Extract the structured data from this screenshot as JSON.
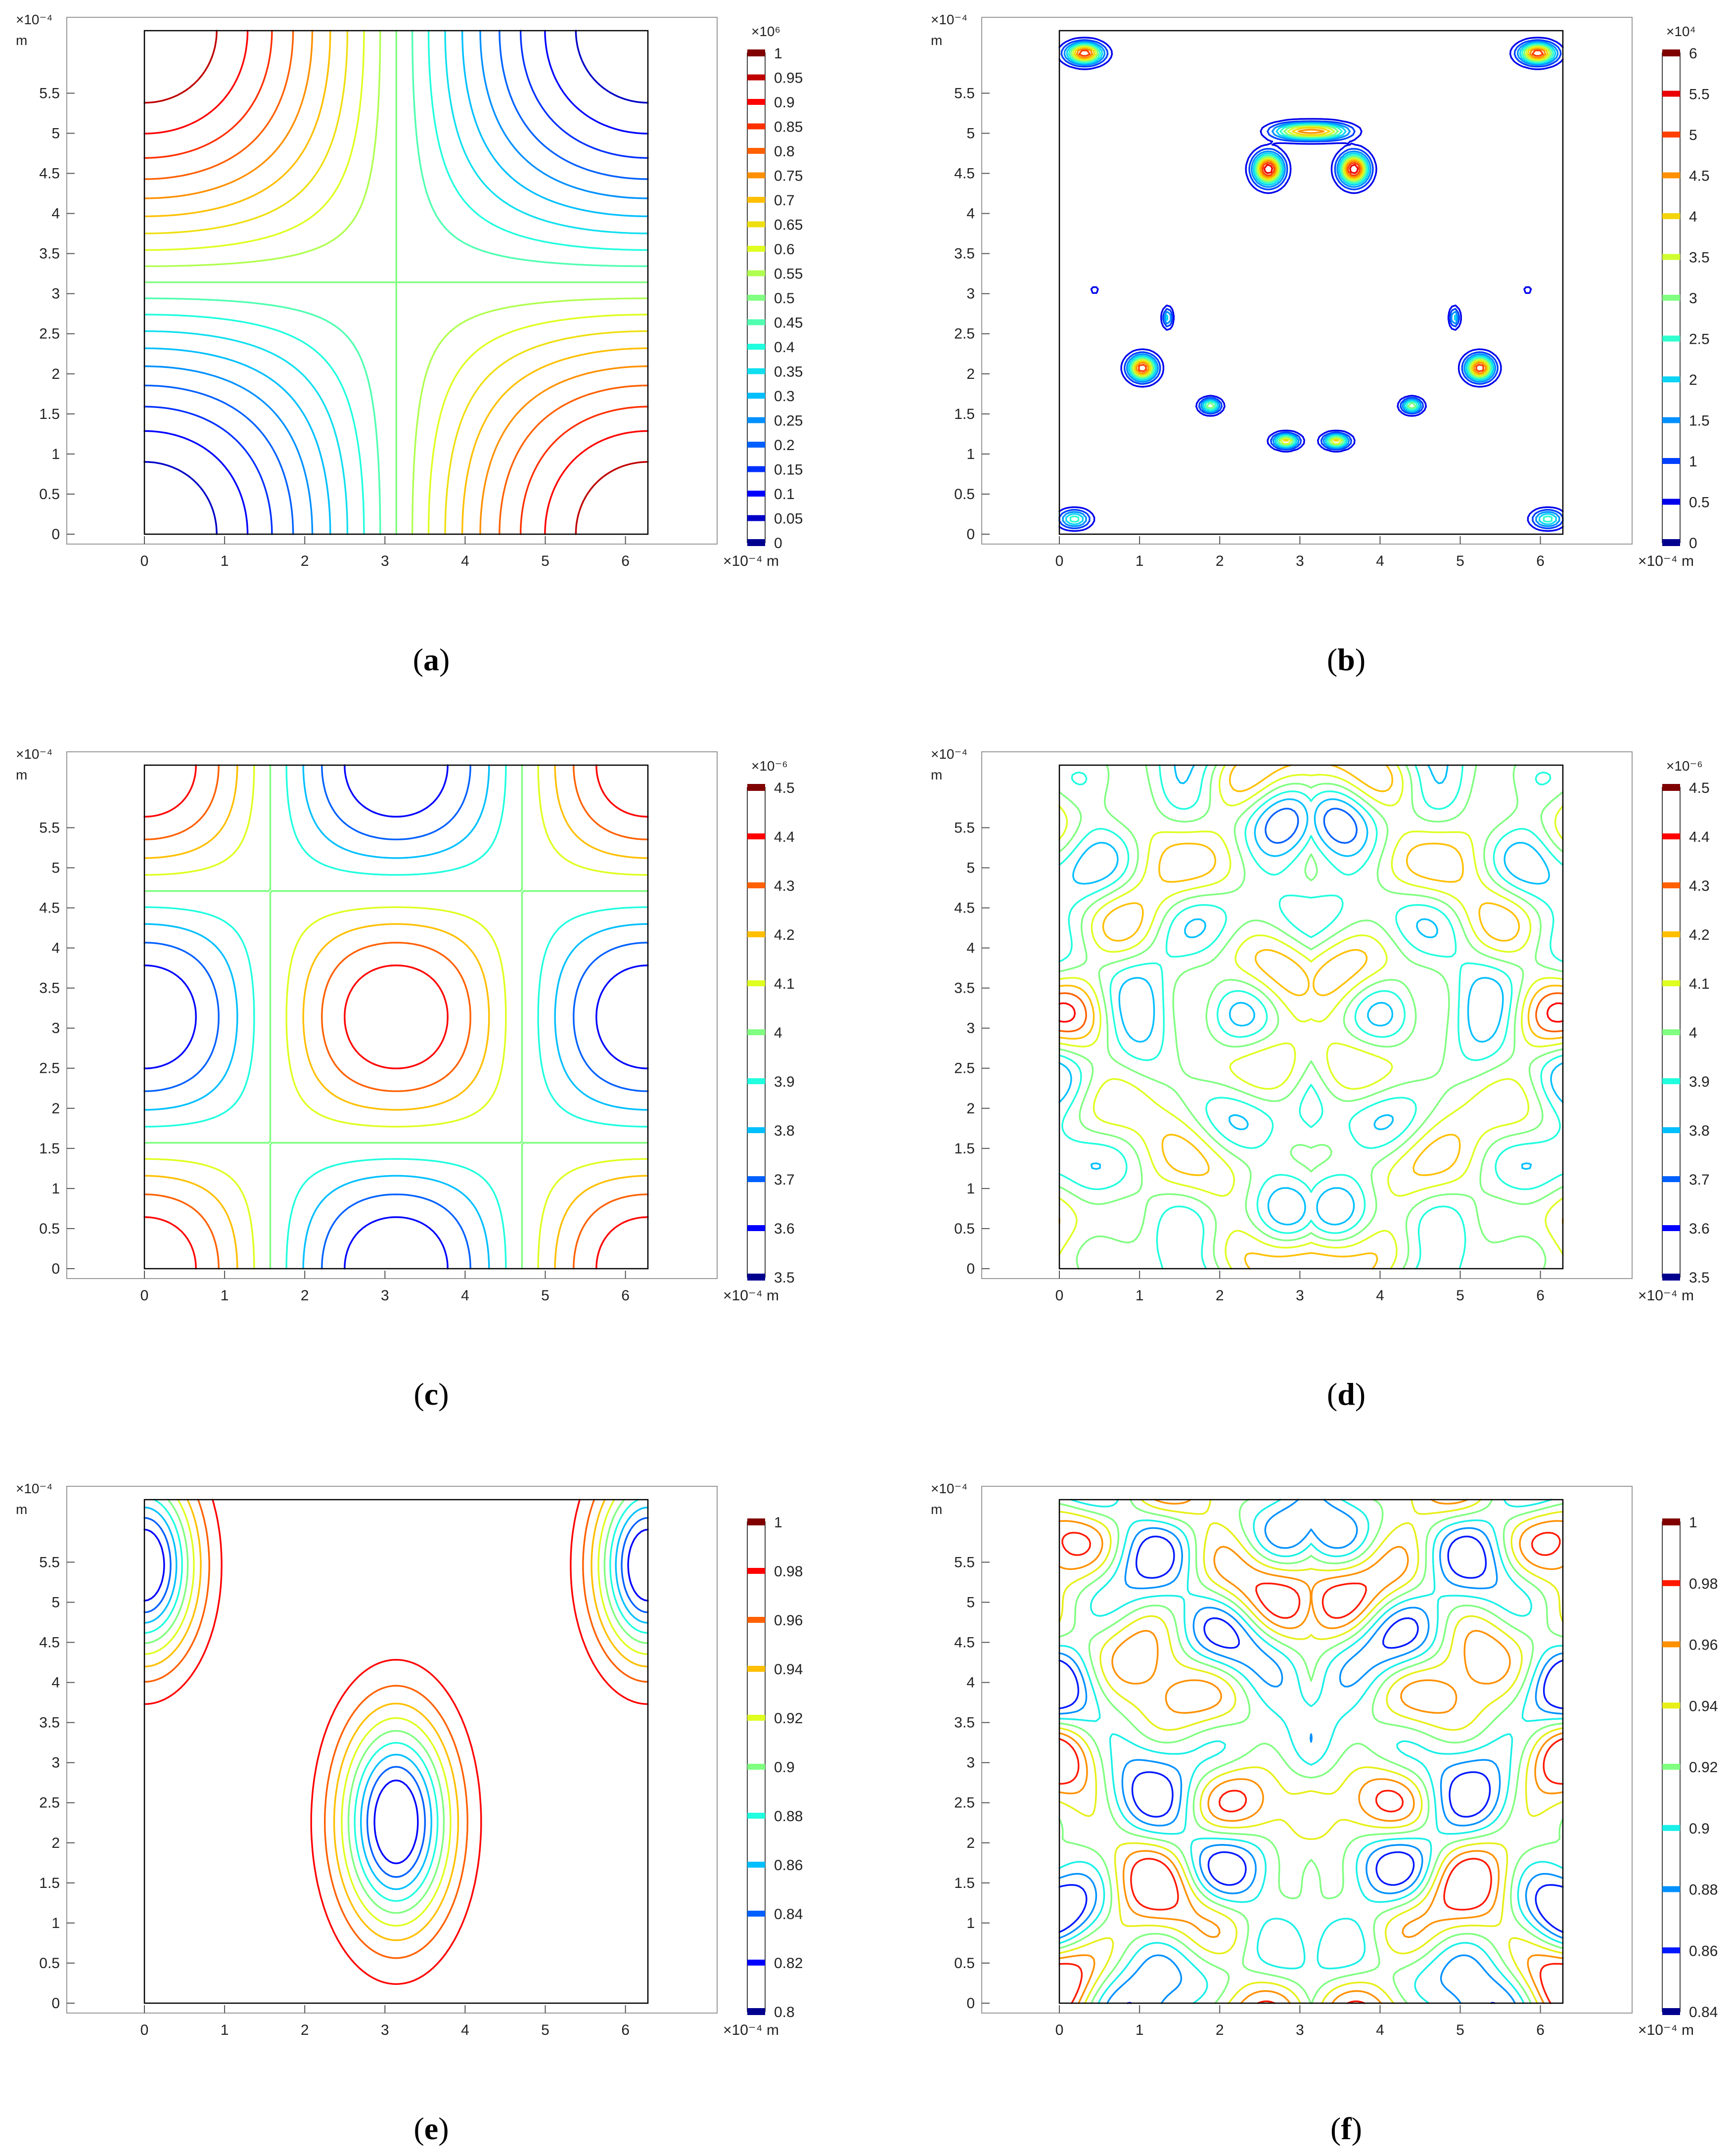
{
  "chart_data": [
    {
      "id": "a",
      "type": "contour",
      "caption_letter": "a",
      "x_axis": {
        "ticks": [
          "0",
          "1",
          "2",
          "3",
          "4",
          "5",
          "6"
        ],
        "multiplier_label": "×10⁻⁴",
        "unit": "m",
        "range": [
          0,
          6.28
        ]
      },
      "y_axis": {
        "ticks": [
          "0",
          "0.5",
          "1",
          "1.5",
          "2",
          "2.5",
          "3",
          "3.5",
          "4",
          "4.5",
          "5",
          "5.5"
        ],
        "multiplier_label": "×10⁻⁴",
        "unit": "m",
        "range": [
          0,
          6.28
        ]
      },
      "colorbar": {
        "multiplier_label": "×10⁶",
        "labels": [
          "1",
          "0.95",
          "0.9",
          "0.85",
          "0.8",
          "0.75",
          "0.7",
          "0.65",
          "0.6",
          "0.55",
          "0.5",
          "0.45",
          "0.4",
          "0.35",
          "0.3",
          "0.25",
          "0.2",
          "0.15",
          "0.1",
          "0.05",
          "0"
        ],
        "range": [
          0,
          1
        ]
      },
      "field": "a",
      "levels": [
        0.05,
        0.1,
        0.15,
        0.2,
        0.25,
        0.3,
        0.35,
        0.4,
        0.45,
        0.5,
        0.55,
        0.6,
        0.65,
        0.7,
        0.75,
        0.8,
        0.85,
        0.9,
        0.95
      ]
    },
    {
      "id": "b",
      "type": "contour",
      "caption_letter": "b",
      "x_axis": {
        "ticks": [
          "0",
          "1",
          "2",
          "3",
          "4",
          "5",
          "6"
        ],
        "multiplier_label": "×10⁻⁴",
        "unit": "m",
        "range": [
          0,
          6.28
        ]
      },
      "y_axis": {
        "ticks": [
          "0",
          "0.5",
          "1",
          "1.5",
          "2",
          "2.5",
          "3",
          "3.5",
          "4",
          "4.5",
          "5",
          "5.5"
        ],
        "multiplier_label": "×10⁻⁴",
        "unit": "m",
        "range": [
          0,
          6.28
        ]
      },
      "colorbar": {
        "multiplier_label": "×10⁴",
        "labels": [
          "6",
          "5.5",
          "5",
          "4.5",
          "4",
          "3.5",
          "3",
          "2.5",
          "2",
          "1.5",
          "1",
          "0.5",
          "0"
        ],
        "range": [
          0,
          6
        ]
      },
      "field": "b",
      "levels": [
        0.5,
        1,
        1.5,
        2,
        2.5,
        3,
        3.5,
        4,
        4.5,
        5,
        5.5
      ]
    },
    {
      "id": "c",
      "type": "contour",
      "caption_letter": "c",
      "x_axis": {
        "ticks": [
          "0",
          "1",
          "2",
          "3",
          "4",
          "5",
          "6"
        ],
        "multiplier_label": "×10⁻⁴",
        "unit": "m",
        "range": [
          0,
          6.28
        ]
      },
      "y_axis": {
        "ticks": [
          "0",
          "0.5",
          "1",
          "1.5",
          "2",
          "2.5",
          "3",
          "3.5",
          "4",
          "4.5",
          "5",
          "5.5"
        ],
        "multiplier_label": "×10⁻⁴",
        "unit": "m",
        "range": [
          0,
          6.28
        ]
      },
      "colorbar": {
        "multiplier_label": "×10⁻⁶",
        "labels": [
          "4.5",
          "4.4",
          "4.3",
          "4.2",
          "4.1",
          "4",
          "3.9",
          "3.8",
          "3.7",
          "3.6",
          "3.5"
        ],
        "range": [
          3.5,
          4.5
        ]
      },
      "field": "c",
      "levels": [
        3.6,
        3.7,
        3.8,
        3.9,
        4.0,
        4.1,
        4.2,
        4.3,
        4.4
      ]
    },
    {
      "id": "d",
      "type": "contour",
      "caption_letter": "d",
      "x_axis": {
        "ticks": [
          "0",
          "1",
          "2",
          "3",
          "4",
          "5",
          "6"
        ],
        "multiplier_label": "×10⁻⁴",
        "unit": "m",
        "range": [
          0,
          6.28
        ]
      },
      "y_axis": {
        "ticks": [
          "0",
          "0.5",
          "1",
          "1.5",
          "2",
          "2.5",
          "3",
          "3.5",
          "4",
          "4.5",
          "5",
          "5.5"
        ],
        "multiplier_label": "×10⁻⁴",
        "unit": "m",
        "range": [
          0,
          6.28
        ]
      },
      "colorbar": {
        "multiplier_label": "×10⁻⁶",
        "labels": [
          "4.5",
          "4.4",
          "4.3",
          "4.2",
          "4.1",
          "4",
          "3.9",
          "3.8",
          "3.7",
          "3.6",
          "3.5"
        ],
        "range": [
          3.5,
          4.5
        ]
      },
      "field": "d",
      "levels": [
        3.6,
        3.7,
        3.8,
        3.9,
        4.0,
        4.1,
        4.2,
        4.3,
        4.4
      ]
    },
    {
      "id": "e",
      "type": "contour",
      "caption_letter": "e",
      "x_axis": {
        "ticks": [
          "0",
          "1",
          "2",
          "3",
          "4",
          "5",
          "6"
        ],
        "multiplier_label": "×10⁻⁴",
        "unit": "m",
        "range": [
          0,
          6.28
        ]
      },
      "y_axis": {
        "ticks": [
          "0",
          "0.5",
          "1",
          "1.5",
          "2",
          "2.5",
          "3",
          "3.5",
          "4",
          "4.5",
          "5",
          "5.5"
        ],
        "multiplier_label": "×10⁻⁴",
        "unit": "m",
        "range": [
          0,
          6.28
        ]
      },
      "colorbar": {
        "multiplier_label": "",
        "labels": [
          "1",
          "0.98",
          "0.96",
          "0.94",
          "0.92",
          "0.9",
          "0.88",
          "0.86",
          "0.84",
          "0.82",
          "0.8"
        ],
        "range": [
          0.8,
          1
        ]
      },
      "field": "e",
      "levels": [
        0.82,
        0.84,
        0.86,
        0.88,
        0.9,
        0.92,
        0.94,
        0.96,
        0.98
      ]
    },
    {
      "id": "f",
      "type": "contour",
      "caption_letter": "f",
      "x_axis": {
        "ticks": [
          "0",
          "1",
          "2",
          "3",
          "4",
          "5",
          "6"
        ],
        "multiplier_label": "×10⁻⁴",
        "unit": "m",
        "range": [
          0,
          6.28
        ]
      },
      "y_axis": {
        "ticks": [
          "0",
          "0.5",
          "1",
          "1.5",
          "2",
          "2.5",
          "3",
          "3.5",
          "4",
          "4.5",
          "5",
          "5.5"
        ],
        "multiplier_label": "×10⁻⁴",
        "unit": "m",
        "range": [
          0,
          6.28
        ]
      },
      "colorbar": {
        "multiplier_label": "",
        "labels": [
          "1",
          "0.98",
          "0.96",
          "0.94",
          "0.92",
          "0.9",
          "0.88",
          "0.86",
          "0.84"
        ],
        "range": [
          0.84,
          1
        ]
      },
      "field": "f",
      "levels": [
        0.86,
        0.88,
        0.9,
        0.92,
        0.94,
        0.96,
        0.98
      ]
    }
  ],
  "colormap": [
    "#00008f",
    "#0000ff",
    "#0060ff",
    "#00bfff",
    "#20ffdf",
    "#80ff80",
    "#dfff20",
    "#ffbf00",
    "#ff6000",
    "#ff0000",
    "#800000"
  ]
}
